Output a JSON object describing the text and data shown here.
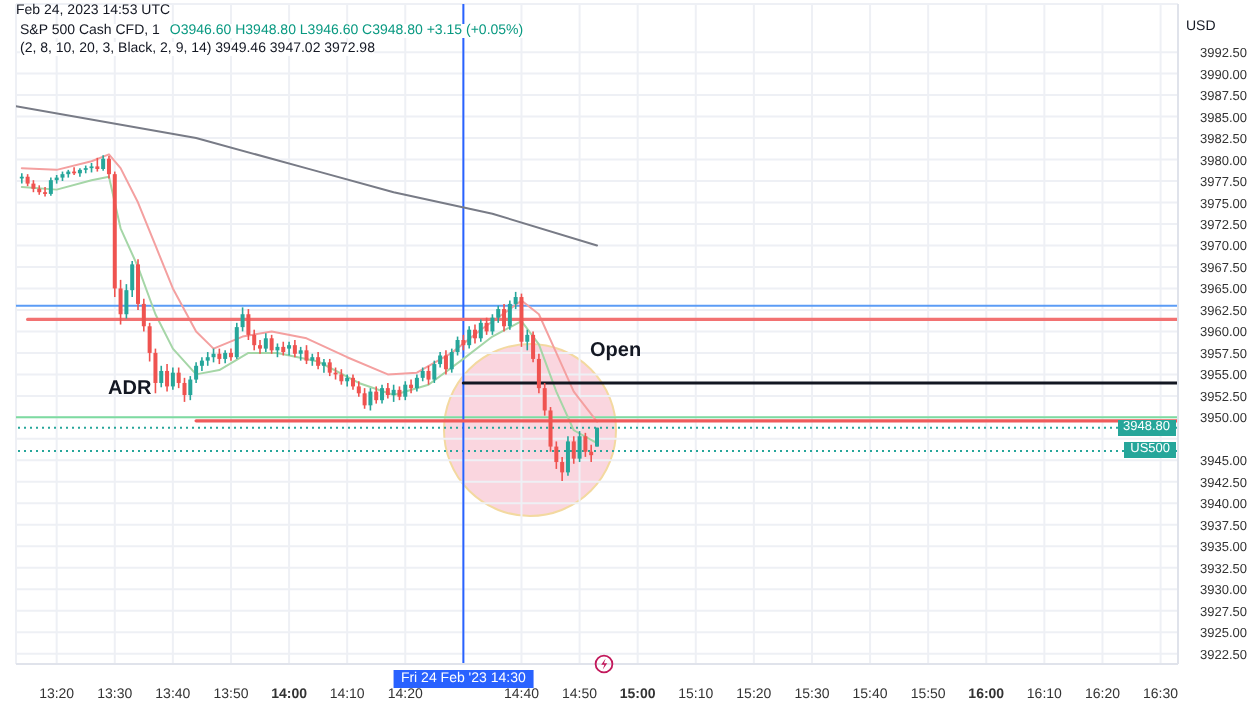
{
  "chart_data": {
    "type": "candlestick",
    "subtitle": "Feb 24, 2023 14:53 UTC",
    "title": "S&P 500 Cash CFD, 1",
    "ylabel": "USD",
    "annotations": [
      "O3946.60 H3948.80 L3946.60 C3948.80 +3.15 (+0.05%)",
      "(2, 8, 10, 20, 3, Black, 2, 9, 14) 3949.46 3947.02 3972.98",
      "ADR",
      "Open"
    ],
    "x": [
      "2023-02-24T13:14",
      "2023-02-24T13:15",
      "2023-02-24T13:16",
      "2023-02-24T13:17",
      "2023-02-24T13:18",
      "2023-02-24T13:19",
      "2023-02-24T13:20",
      "2023-02-24T13:21",
      "2023-02-24T13:22",
      "2023-02-24T13:23",
      "2023-02-24T13:24",
      "2023-02-24T13:25",
      "2023-02-24T13:26",
      "2023-02-24T13:27",
      "2023-02-24T13:28",
      "2023-02-24T13:29",
      "2023-02-24T13:30",
      "2023-02-24T13:31",
      "2023-02-24T13:32",
      "2023-02-24T13:33",
      "2023-02-24T13:34",
      "2023-02-24T13:35",
      "2023-02-24T13:36",
      "2023-02-24T13:37",
      "2023-02-24T13:38",
      "2023-02-24T13:39",
      "2023-02-24T13:40",
      "2023-02-24T13:41",
      "2023-02-24T13:42",
      "2023-02-24T13:43",
      "2023-02-24T13:44",
      "2023-02-24T13:45",
      "2023-02-24T13:46",
      "2023-02-24T13:47",
      "2023-02-24T13:48",
      "2023-02-24T13:49",
      "2023-02-24T13:50",
      "2023-02-24T13:51",
      "2023-02-24T13:52",
      "2023-02-24T13:53",
      "2023-02-24T13:54",
      "2023-02-24T13:55",
      "2023-02-24T13:56",
      "2023-02-24T13:57",
      "2023-02-24T13:58",
      "2023-02-24T13:59",
      "2023-02-24T14:00",
      "2023-02-24T14:01",
      "2023-02-24T14:02",
      "2023-02-24T14:03",
      "2023-02-24T14:04",
      "2023-02-24T14:05",
      "2023-02-24T14:06",
      "2023-02-24T14:07",
      "2023-02-24T14:08",
      "2023-02-24T14:09",
      "2023-02-24T14:10",
      "2023-02-24T14:11",
      "2023-02-24T14:12",
      "2023-02-24T14:13",
      "2023-02-24T14:14",
      "2023-02-24T14:15",
      "2023-02-24T14:16",
      "2023-02-24T14:17",
      "2023-02-24T14:18",
      "2023-02-24T14:19",
      "2023-02-24T14:20",
      "2023-02-24T14:21",
      "2023-02-24T14:22",
      "2023-02-24T14:23",
      "2023-02-24T14:24",
      "2023-02-24T14:25",
      "2023-02-24T14:26",
      "2023-02-24T14:27",
      "2023-02-24T14:28",
      "2023-02-24T14:29",
      "2023-02-24T14:30",
      "2023-02-24T14:31",
      "2023-02-24T14:32",
      "2023-02-24T14:33",
      "2023-02-24T14:34",
      "2023-02-24T14:35",
      "2023-02-24T14:36",
      "2023-02-24T14:37",
      "2023-02-24T14:38",
      "2023-02-24T14:39",
      "2023-02-24T14:40",
      "2023-02-24T14:41",
      "2023-02-24T14:42",
      "2023-02-24T14:43",
      "2023-02-24T14:44",
      "2023-02-24T14:45",
      "2023-02-24T14:46",
      "2023-02-24T14:47",
      "2023-02-24T14:48",
      "2023-02-24T14:49",
      "2023-02-24T14:50",
      "2023-02-24T14:51",
      "2023-02-24T14:52",
      "2023-02-24T14:53"
    ],
    "ohlc": [
      [
        3977.8,
        3978.4,
        3977.2,
        3978.0
      ],
      [
        3978.0,
        3978.3,
        3976.9,
        3977.2
      ],
      [
        3977.2,
        3977.6,
        3976.2,
        3976.6
      ],
      [
        3976.6,
        3977.0,
        3975.9,
        3976.2
      ],
      [
        3976.2,
        3976.8,
        3975.7,
        3976.0
      ],
      [
        3976.0,
        3977.9,
        3975.8,
        3977.6
      ],
      [
        3977.6,
        3978.2,
        3977.2,
        3977.9
      ],
      [
        3977.9,
        3978.6,
        3977.5,
        3978.3
      ],
      [
        3978.3,
        3978.8,
        3977.9,
        3978.6
      ],
      [
        3978.6,
        3979.1,
        3978.2,
        3978.4
      ],
      [
        3978.4,
        3979.0,
        3978.0,
        3978.8
      ],
      [
        3978.8,
        3979.3,
        3978.4,
        3979.0
      ],
      [
        3979.0,
        3979.6,
        3978.5,
        3979.2
      ],
      [
        3979.2,
        3980.2,
        3978.6,
        3978.9
      ],
      [
        3978.9,
        3980.5,
        3978.7,
        3980.1
      ],
      [
        3980.1,
        3980.4,
        3977.8,
        3978.3
      ],
      [
        3978.3,
        3978.6,
        3964.0,
        3965.0
      ],
      [
        3965.0,
        3966.0,
        3960.8,
        3962.0
      ],
      [
        3962.0,
        3965.5,
        3961.5,
        3964.8
      ],
      [
        3964.8,
        3968.2,
        3964.0,
        3967.8
      ],
      [
        3967.8,
        3968.4,
        3962.5,
        3963.2
      ],
      [
        3963.2,
        3963.8,
        3960.0,
        3960.6
      ],
      [
        3960.6,
        3961.0,
        3956.5,
        3957.5
      ],
      [
        3957.5,
        3958.0,
        3952.8,
        3954.0
      ],
      [
        3954.0,
        3956.0,
        3953.5,
        3955.4
      ],
      [
        3955.4,
        3956.2,
        3953.0,
        3953.6
      ],
      [
        3953.6,
        3955.8,
        3953.2,
        3955.2
      ],
      [
        3955.2,
        3955.8,
        3953.4,
        3954.0
      ],
      [
        3954.0,
        3954.6,
        3951.8,
        3952.6
      ],
      [
        3952.6,
        3954.8,
        3952.0,
        3954.4
      ],
      [
        3954.4,
        3956.4,
        3954.0,
        3956.0
      ],
      [
        3956.0,
        3957.0,
        3955.4,
        3956.6
      ],
      [
        3956.6,
        3957.6,
        3956.0,
        3957.0
      ],
      [
        3957.0,
        3958.0,
        3956.4,
        3957.4
      ],
      [
        3957.4,
        3958.0,
        3956.2,
        3956.8
      ],
      [
        3956.8,
        3957.8,
        3956.3,
        3957.5
      ],
      [
        3957.5,
        3958.0,
        3956.6,
        3957.0
      ],
      [
        3957.0,
        3961.0,
        3956.8,
        3960.5
      ],
      [
        3960.5,
        3962.8,
        3960.0,
        3962.0
      ],
      [
        3962.0,
        3962.6,
        3959.0,
        3959.6
      ],
      [
        3959.6,
        3960.2,
        3957.8,
        3958.4
      ],
      [
        3958.4,
        3959.0,
        3957.4,
        3958.0
      ],
      [
        3958.0,
        3959.8,
        3957.6,
        3959.2
      ],
      [
        3959.2,
        3959.6,
        3957.4,
        3957.8
      ],
      [
        3957.8,
        3958.6,
        3957.0,
        3958.2
      ],
      [
        3958.2,
        3958.8,
        3957.2,
        3957.6
      ],
      [
        3958.0,
        3958.8,
        3957.2,
        3958.4
      ],
      [
        3958.4,
        3959.0,
        3957.0,
        3957.4
      ],
      [
        3957.4,
        3958.2,
        3956.6,
        3957.8
      ],
      [
        3957.8,
        3958.4,
        3956.2,
        3956.6
      ],
      [
        3956.6,
        3957.4,
        3956.0,
        3957.0
      ],
      [
        3957.0,
        3957.6,
        3955.6,
        3956.0
      ],
      [
        3956.0,
        3956.8,
        3955.2,
        3956.4
      ],
      [
        3956.4,
        3956.8,
        3954.8,
        3955.2
      ],
      [
        3955.2,
        3955.8,
        3954.4,
        3955.0
      ],
      [
        3955.0,
        3955.6,
        3953.8,
        3954.2
      ],
      [
        3954.2,
        3955.0,
        3953.6,
        3954.6
      ],
      [
        3954.6,
        3955.0,
        3953.2,
        3953.6
      ],
      [
        3953.6,
        3954.2,
        3952.4,
        3952.8
      ],
      [
        3952.8,
        3953.4,
        3951.0,
        3951.4
      ],
      [
        3951.4,
        3953.4,
        3950.8,
        3953.0
      ],
      [
        3953.0,
        3953.6,
        3951.6,
        3952.0
      ],
      [
        3952.0,
        3953.8,
        3951.6,
        3953.4
      ],
      [
        3953.4,
        3954.0,
        3952.2,
        3952.6
      ],
      [
        3952.6,
        3953.8,
        3951.8,
        3953.2
      ],
      [
        3953.2,
        3953.6,
        3952.0,
        3952.4
      ],
      [
        3952.4,
        3954.2,
        3952.0,
        3953.8
      ],
      [
        3953.8,
        3954.4,
        3952.8,
        3953.4
      ],
      [
        3953.4,
        3955.0,
        3953.0,
        3954.6
      ],
      [
        3954.6,
        3955.8,
        3954.2,
        3955.4
      ],
      [
        3955.4,
        3956.0,
        3953.8,
        3954.4
      ],
      [
        3954.4,
        3956.6,
        3954.0,
        3956.2
      ],
      [
        3956.2,
        3957.6,
        3955.8,
        3957.2
      ],
      [
        3957.2,
        3957.8,
        3955.0,
        3955.6
      ],
      [
        3955.6,
        3958.0,
        3955.2,
        3957.6
      ],
      [
        3957.6,
        3959.4,
        3957.2,
        3959.0
      ],
      [
        3959.0,
        3959.6,
        3957.8,
        3958.4
      ],
      [
        3958.4,
        3960.6,
        3958.0,
        3960.2
      ],
      [
        3960.2,
        3960.8,
        3958.6,
        3959.2
      ],
      [
        3959.2,
        3961.4,
        3958.8,
        3961.0
      ],
      [
        3961.0,
        3961.6,
        3959.6,
        3960.0
      ],
      [
        3960.0,
        3962.0,
        3959.6,
        3961.6
      ],
      [
        3961.6,
        3963.0,
        3961.0,
        3962.6
      ],
      [
        3962.6,
        3963.2,
        3960.0,
        3960.6
      ],
      [
        3960.6,
        3963.6,
        3960.2,
        3963.2
      ],
      [
        3963.2,
        3964.6,
        3962.6,
        3964.0
      ],
      [
        3964.0,
        3964.4,
        3958.2,
        3958.8
      ],
      [
        3958.8,
        3960.2,
        3957.8,
        3959.6
      ],
      [
        3959.6,
        3960.0,
        3956.4,
        3956.8
      ],
      [
        3956.8,
        3957.4,
        3952.8,
        3953.4
      ],
      [
        3953.4,
        3954.0,
        3950.2,
        3950.8
      ],
      [
        3950.8,
        3951.2,
        3946.0,
        3946.6
      ],
      [
        3946.6,
        3947.2,
        3944.0,
        3944.8
      ],
      [
        3944.8,
        3945.4,
        3942.6,
        3943.6
      ],
      [
        3943.6,
        3947.8,
        3943.2,
        3947.2
      ],
      [
        3947.2,
        3947.8,
        3944.6,
        3945.2
      ],
      [
        3945.2,
        3948.4,
        3944.8,
        3947.8
      ],
      [
        3947.8,
        3948.2,
        3945.4,
        3946.0
      ],
      [
        3946.0,
        3946.8,
        3944.8,
        3945.6
      ],
      [
        3946.6,
        3948.8,
        3946.6,
        3948.8
      ]
    ],
    "colors": [
      "#26a69a",
      "#ef5350",
      "#ef5350",
      "#ef5350",
      "#ef5350",
      "#26a69a",
      "#26a69a",
      "#26a69a",
      "#26a69a",
      "#ef5350",
      "#26a69a",
      "#26a69a",
      "#26a69a",
      "#ef5350",
      "#26a69a",
      "#ef5350",
      "#ef5350",
      "#ef5350",
      "#26a69a",
      "#26a69a",
      "#ef5350",
      "#ef5350",
      "#ef5350",
      "#ef5350",
      "#26a69a",
      "#ef5350",
      "#26a69a",
      "#ef5350",
      "#ef5350",
      "#26a69a",
      "#26a69a",
      "#26a69a",
      "#26a69a",
      "#26a69a",
      "#ef5350",
      "#26a69a",
      "#ef5350",
      "#26a69a",
      "#26a69a",
      "#ef5350",
      "#ef5350",
      "#ef5350",
      "#26a69a",
      "#ef5350",
      "#26a69a",
      "#ef5350",
      "#26a69a",
      "#ef5350",
      "#26a69a",
      "#ef5350",
      "#26a69a",
      "#ef5350",
      "#26a69a",
      "#ef5350",
      "#ef5350",
      "#ef5350",
      "#26a69a",
      "#ef5350",
      "#ef5350",
      "#ef5350",
      "#26a69a",
      "#ef5350",
      "#26a69a",
      "#ef5350",
      "#26a69a",
      "#ef5350",
      "#26a69a",
      "#ef5350",
      "#26a69a",
      "#26a69a",
      "#ef5350",
      "#26a69a",
      "#26a69a",
      "#ef5350",
      "#26a69a",
      "#26a69a",
      "#ef5350",
      "#26a69a",
      "#ef5350",
      "#26a69a",
      "#ef5350",
      "#26a69a",
      "#26a69a",
      "#ef5350",
      "#26a69a",
      "#26a69a",
      "#ef5350",
      "#26a69a",
      "#ef5350",
      "#ef5350",
      "#ef5350",
      "#ef5350",
      "#ef5350",
      "#ef5350",
      "#26a69a",
      "#ef5350",
      "#26a69a",
      "#ef5350",
      "#ef5350",
      "#26a69a"
    ],
    "series": [
      {
        "type": "line",
        "color": "#787b86",
        "x": [
          "2023-02-24T13:13",
          "2023-02-24T13:44",
          "2023-02-24T14:04",
          "2023-02-24T14:18",
          "2023-02-24T14:35",
          "2023-02-24T14:53"
        ],
        "values": [
          3986.2,
          3982.5,
          3978.8,
          3976.2,
          3973.7,
          3970.0
        ]
      },
      {
        "type": "line",
        "color": "#f4a0a0",
        "x": [
          "2023-02-24T13:14",
          "2023-02-24T13:20",
          "2023-02-24T13:26",
          "2023-02-24T13:29",
          "2023-02-24T13:31",
          "2023-02-24T13:34",
          "2023-02-24T13:37",
          "2023-02-24T13:40",
          "2023-02-24T13:44",
          "2023-02-24T13:47",
          "2023-02-24T13:52",
          "2023-02-24T13:57",
          "2023-02-24T14:03",
          "2023-02-24T14:10",
          "2023-02-24T14:17",
          "2023-02-24T14:22",
          "2023-02-24T14:28",
          "2023-02-24T14:33",
          "2023-02-24T14:38",
          "2023-02-24T14:40",
          "2023-02-24T14:43",
          "2023-02-24T14:46",
          "2023-02-24T14:49",
          "2023-02-24T14:53"
        ],
        "values": [
          3979.0,
          3978.8,
          3979.8,
          3980.6,
          3979.0,
          3975.0,
          3970.0,
          3965.0,
          3960.0,
          3958.0,
          3959.4,
          3960.0,
          3959.2,
          3957.0,
          3955.0,
          3955.2,
          3957.5,
          3960.2,
          3962.6,
          3963.6,
          3962.0,
          3957.5,
          3953.0,
          3949.5
        ]
      },
      {
        "type": "line",
        "color": "#a5d6a7",
        "x": [
          "2023-02-24T13:14",
          "2023-02-24T13:20",
          "2023-02-24T13:26",
          "2023-02-24T13:29",
          "2023-02-24T13:31",
          "2023-02-24T13:34",
          "2023-02-24T13:37",
          "2023-02-24T13:40",
          "2023-02-24T13:44",
          "2023-02-24T13:48",
          "2023-02-24T13:53",
          "2023-02-24T13:58",
          "2023-02-24T14:05",
          "2023-02-24T14:12",
          "2023-02-24T14:18",
          "2023-02-24T14:24",
          "2023-02-24T14:30",
          "2023-02-24T14:35",
          "2023-02-24T14:40",
          "2023-02-24T14:43",
          "2023-02-24T14:46",
          "2023-02-24T14:49",
          "2023-02-24T14:53"
        ],
        "values": [
          3976.8,
          3976.5,
          3977.6,
          3978.0,
          3972.0,
          3967.5,
          3962.0,
          3958.0,
          3955.0,
          3955.5,
          3957.5,
          3957.5,
          3956.5,
          3954.0,
          3952.6,
          3953.8,
          3956.8,
          3959.4,
          3961.2,
          3958.5,
          3953.0,
          3948.5,
          3947.0
        ]
      },
      {
        "type": "line",
        "color": "#f27272",
        "x": [
          "2023-02-24T13:15",
          "2023-02-24T16:33"
        ],
        "values": [
          3961.4,
          3961.4
        ]
      },
      {
        "type": "line",
        "color": "#131722",
        "x": [
          "2023-02-24T14:30",
          "2023-02-24T16:33"
        ],
        "values": [
          3954.0,
          3954.0
        ]
      },
      {
        "type": "line",
        "color": "#f05a5a",
        "x": [
          "2023-02-24T13:44",
          "2023-02-24T16:33"
        ],
        "values": [
          3949.6,
          3949.6
        ]
      }
    ],
    "ref_lines": [
      {
        "axis": "y",
        "value": 3963.0,
        "color": "#5b9cf6"
      },
      {
        "axis": "y",
        "value": 3950.0,
        "color": "#7ddba0"
      },
      {
        "axis": "y",
        "value": 3948.8,
        "label": "3948.80",
        "color": "#26a69a",
        "line_style": "dotted"
      },
      {
        "axis": "y",
        "value": 3946.1,
        "label": "US500",
        "color": "#26a69a",
        "line_style": "dotted"
      },
      {
        "axis": "x",
        "value": "2023-02-24T14:30",
        "label": "Fri 24 Feb '23  14:30",
        "color": "#2962ff"
      }
    ],
    "xlim": [
      "2023-02-24T13:13",
      "2023-02-24T16:33"
    ],
    "xticks": [
      {
        "value": "2023-02-24T13:20",
        "label": "13:20"
      },
      {
        "value": "2023-02-24T13:30",
        "label": "13:30"
      },
      {
        "value": "2023-02-24T13:40",
        "label": "13:40"
      },
      {
        "value": "2023-02-24T13:50",
        "label": "13:50"
      },
      {
        "value": "2023-02-24T14:00",
        "label": "14:00"
      },
      {
        "value": "2023-02-24T14:10",
        "label": "14:10"
      },
      {
        "value": "2023-02-24T14:20",
        "label": "14:20"
      },
      {
        "value": "2023-02-24T14:30",
        "label": null
      },
      {
        "value": "2023-02-24T14:40",
        "label": "14:40"
      },
      {
        "value": "2023-02-24T14:50",
        "label": "14:50"
      },
      {
        "value": "2023-02-24T15:00",
        "label": "15:00"
      },
      {
        "value": "2023-02-24T15:10",
        "label": "15:10"
      },
      {
        "value": "2023-02-24T15:20",
        "label": "15:20"
      },
      {
        "value": "2023-02-24T15:30",
        "label": "15:30"
      },
      {
        "value": "2023-02-24T15:40",
        "label": "15:40"
      },
      {
        "value": "2023-02-24T15:50",
        "label": "15:50"
      },
      {
        "value": "2023-02-24T16:00",
        "label": "16:00"
      },
      {
        "value": "2023-02-24T16:10",
        "label": "16:10"
      },
      {
        "value": "2023-02-24T16:20",
        "label": "16:20"
      },
      {
        "value": "2023-02-24T16:30",
        "label": "16:30"
      }
    ],
    "ylim": [
      3921.3,
      3998.1
    ],
    "yticks": [
      {
        "value": 3992.5,
        "label": "3992.50"
      },
      {
        "value": 3990,
        "label": "3990.00"
      },
      {
        "value": 3987.5,
        "label": "3987.50"
      },
      {
        "value": 3985,
        "label": "3985.00"
      },
      {
        "value": 3982.5,
        "label": "3982.50"
      },
      {
        "value": 3980,
        "label": "3980.00"
      },
      {
        "value": 3977.5,
        "label": "3977.50"
      },
      {
        "value": 3975,
        "label": "3975.00"
      },
      {
        "value": 3972.5,
        "label": "3972.50"
      },
      {
        "value": 3970,
        "label": "3970.00"
      },
      {
        "value": 3967.5,
        "label": "3967.50"
      },
      {
        "value": 3965,
        "label": "3965.00"
      },
      {
        "value": 3962.5,
        "label": "3962.50"
      },
      {
        "value": 3960,
        "label": "3960.00"
      },
      {
        "value": 3957.5,
        "label": "3957.50"
      },
      {
        "value": 3955,
        "label": "3955.00"
      },
      {
        "value": 3952.5,
        "label": "3952.50"
      },
      {
        "value": 3950,
        "label": "3950.00"
      },
      {
        "value": 3947.5,
        "label": null
      },
      {
        "value": 3945,
        "label": "3945.00"
      },
      {
        "value": 3942.5,
        "label": "3942.50"
      },
      {
        "value": 3940,
        "label": "3940.00"
      },
      {
        "value": 3937.5,
        "label": "3937.50"
      },
      {
        "value": 3935,
        "label": "3935.00"
      },
      {
        "value": 3932.5,
        "label": "3932.50"
      },
      {
        "value": 3930,
        "label": "3930.00"
      },
      {
        "value": 3927.5,
        "label": "3927.50"
      },
      {
        "value": 3925,
        "label": "3925.00"
      },
      {
        "value": 3922.5,
        "label": "3922.50"
      }
    ],
    "grid": true
  }
}
